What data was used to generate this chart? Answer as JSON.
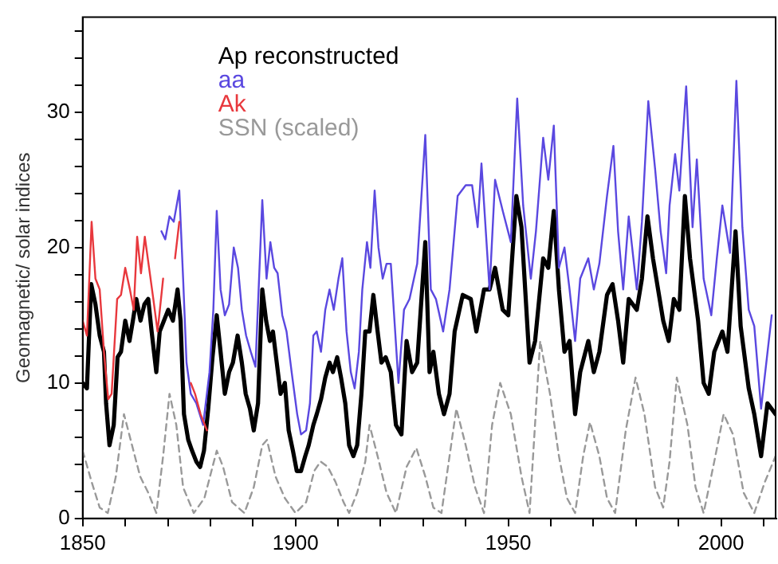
{
  "chart_data": {
    "type": "line",
    "ylabel": "Geomagnetic/ solar indices",
    "legend": "top left",
    "xlim": [
      1850,
      2013
    ],
    "ylim": [
      0,
      37
    ],
    "xticks": [
      1850,
      {
        "value": 1860,
        "label": null
      },
      {
        "value": 1870,
        "label": null
      },
      {
        "value": 1880,
        "label": null
      },
      {
        "value": 1890,
        "label": null
      },
      1900,
      {
        "value": 1910,
        "label": null
      },
      {
        "value": 1920,
        "label": null
      },
      {
        "value": 1930,
        "label": null
      },
      {
        "value": 1940,
        "label": null
      },
      1950,
      {
        "value": 1960,
        "label": null
      },
      {
        "value": 1970,
        "label": null
      },
      {
        "value": 1980,
        "label": null
      },
      {
        "value": 1990,
        "label": null
      },
      2000,
      {
        "value": 2010,
        "label": null
      }
    ],
    "yticks": [
      0,
      {
        "value": 2,
        "label": null
      },
      {
        "value": 4,
        "label": null
      },
      {
        "value": 6,
        "label": null
      },
      {
        "value": 8,
        "label": null
      },
      10,
      {
        "value": 12,
        "label": null
      },
      {
        "value": 14,
        "label": null
      },
      {
        "value": 16,
        "label": null
      },
      {
        "value": 18,
        "label": null
      },
      20,
      {
        "value": 22,
        "label": null
      },
      {
        "value": 24,
        "label": null
      },
      {
        "value": 26,
        "label": null
      },
      {
        "value": 28,
        "label": null
      },
      30,
      {
        "value": 32,
        "label": null
      },
      {
        "value": 34,
        "label": null
      },
      {
        "value": 36,
        "label": null
      }
    ],
    "series": [
      {
        "name": "Ap reconstructed",
        "color": "#000000",
        "line_style": "solid",
        "x": [
          1850,
          1851,
          1852,
          1853,
          1854,
          1855,
          1855.5,
          1856.3,
          1857.3,
          1858.2,
          1859,
          1860,
          1861,
          1861.8,
          1862.6,
          1863.6,
          1864.5,
          1865.4,
          1866.2,
          1867.3,
          1868.1,
          1869.1,
          1870.1,
          1871.2,
          1872.3,
          1873,
          1873.8,
          1874.8,
          1875.7,
          1876.7,
          1877.6,
          1878.5,
          1879.5,
          1880.5,
          1881.5,
          1882.4,
          1883.4,
          1884.4,
          1885.3,
          1886.4,
          1887.4,
          1888.3,
          1889.3,
          1890.2,
          1891.2,
          1892.2,
          1893.1,
          1894,
          1894.7,
          1895.6,
          1896.5,
          1897.5,
          1898.4,
          1899.4,
          1900.3,
          1901.3,
          1902.3,
          1903.1,
          1904.2,
          1905,
          1906,
          1907,
          1908,
          1908.8,
          1909.8,
          1910.7,
          1911.7,
          1912.6,
          1913.6,
          1914.5,
          1915.5,
          1916.4,
          1917.4,
          1918.3,
          1919.3,
          1920.2,
          1921.2,
          1922.4,
          1923.6,
          1924.9,
          1926.1,
          1927.4,
          1928.6,
          1930.5,
          1931.5,
          1932.4,
          1933.7,
          1934.9,
          1936.2,
          1937.4,
          1939.3,
          1941.2,
          1942.5,
          1944.3,
          1945.6,
          1946.9,
          1948.7,
          1950,
          1951.9,
          1953.1,
          1955,
          1956.3,
          1958.2,
          1959.4,
          1960.7,
          1961.9,
          1963.2,
          1964.4,
          1965.7,
          1966.9,
          1968.8,
          1970.1,
          1971.4,
          1973.2,
          1974.5,
          1975.8,
          1977,
          1978.3,
          1980.2,
          1981.4,
          1982.7,
          1984,
          1985.2,
          1986.4,
          1987.7,
          1988.9,
          1990.2,
          1991.5,
          1992.7,
          1994.6,
          1995.9,
          1997.1,
          1998.4,
          2000.3,
          2001.5,
          2003.4,
          2004.6,
          2006.5,
          2007.8,
          2009.4,
          2010.9,
          2012.8
        ],
        "values": [
          10,
          9.6,
          17.3,
          15.8,
          13.5,
          12.3,
          8.5,
          5.4,
          6.9,
          11.9,
          12.3,
          14.6,
          13.1,
          14.6,
          16.2,
          14.6,
          15.8,
          16.2,
          13.8,
          10.8,
          13.8,
          14.6,
          15.4,
          14.6,
          16.9,
          14.6,
          7.7,
          5.8,
          5,
          4.2,
          3.8,
          5,
          8.1,
          11.9,
          15,
          12.3,
          9.2,
          10.8,
          11.5,
          13.5,
          11.5,
          9.2,
          8.1,
          6.5,
          8.5,
          16.9,
          14.6,
          13.1,
          13.8,
          11.5,
          9.2,
          10,
          6.5,
          5,
          3.5,
          3.5,
          4.6,
          5.4,
          6.9,
          7.7,
          8.8,
          10.4,
          11.5,
          10.8,
          11.9,
          10.4,
          8.5,
          5.4,
          4.6,
          5.4,
          9.2,
          13.8,
          13.8,
          16.5,
          13.8,
          11.5,
          11.9,
          10.8,
          6.9,
          6.2,
          13.1,
          10.8,
          11.5,
          20.4,
          10.8,
          12.3,
          9.2,
          7.7,
          9.2,
          13.8,
          16.5,
          16.2,
          13.8,
          16.9,
          16.9,
          18.5,
          15.4,
          15,
          23.8,
          21.5,
          11.5,
          13.1,
          19.2,
          18.5,
          22.7,
          16.9,
          12.3,
          13.1,
          7.7,
          10.8,
          13.1,
          10.8,
          12.3,
          16.5,
          17.3,
          14.6,
          11.5,
          16.2,
          15.4,
          17.7,
          22.3,
          19.2,
          16.9,
          14.6,
          13.1,
          16.2,
          15.4,
          23.8,
          19.2,
          14.6,
          10,
          9.2,
          12.3,
          13.8,
          12.3,
          21.2,
          14.2,
          9.6,
          7.7,
          4.6,
          8.5,
          7.7
        ]
      },
      {
        "name": "aa",
        "color": "#5a48e0",
        "line_style": "solid",
        "x": [
          1868.5,
          1869.4,
          1870.4,
          1871.4,
          1872.7,
          1873.6,
          1874.4,
          1875.4,
          1876.7,
          1878.3,
          1879.8,
          1880.7,
          1881.5,
          1882.4,
          1883.4,
          1884.4,
          1885.5,
          1886.5,
          1887.4,
          1888.4,
          1889.5,
          1890.6,
          1892.2,
          1893.2,
          1894.1,
          1895,
          1895.8,
          1896.9,
          1897.9,
          1899.1,
          1900.4,
          1901.3,
          1902.5,
          1903.4,
          1904.2,
          1905,
          1906,
          1907,
          1908,
          1909,
          1910.1,
          1911,
          1912,
          1913,
          1913.9,
          1914.9,
          1915.7,
          1916.8,
          1917.6,
          1918.6,
          1919.5,
          1920.5,
          1921.4,
          1922.4,
          1924.2,
          1925.5,
          1926.8,
          1928.6,
          1930.5,
          1931.8,
          1933,
          1934.7,
          1936.2,
          1938.1,
          1940,
          1941.5,
          1942.8,
          1943.7,
          1945.6,
          1946.9,
          1948.7,
          1950.6,
          1952.1,
          1953.5,
          1955.3,
          1956.5,
          1958.2,
          1959.4,
          1960.7,
          1961.9,
          1963.2,
          1964.4,
          1965.7,
          1966.9,
          1968.8,
          1970.1,
          1971.4,
          1973.2,
          1974.7,
          1975.8,
          1977,
          1978.3,
          1980.2,
          1981.4,
          1982.9,
          1984.5,
          1985.8,
          1987.1,
          1987.9,
          1989.2,
          1990.2,
          1991.8,
          1993.3,
          1994.3,
          1995.9,
          1997.7,
          1999,
          2000.3,
          2002.1,
          2003.6,
          2005,
          2006.5,
          2007.8,
          2009.4,
          2011.9
        ],
        "values": [
          21.2,
          20.6,
          22.3,
          21.9,
          24.2,
          17.7,
          11.5,
          9.2,
          8.5,
          6.9,
          10.8,
          15.4,
          22.7,
          16.9,
          15,
          15.8,
          20,
          18.5,
          15.4,
          13.5,
          12.3,
          11.2,
          23.5,
          17.7,
          20.4,
          18.5,
          18.1,
          15,
          13.8,
          10.8,
          7.7,
          6.2,
          6.5,
          8.5,
          13.5,
          13.8,
          12.3,
          15.4,
          16.9,
          15.4,
          17.7,
          19.2,
          13.8,
          10.8,
          9.6,
          12.3,
          16.9,
          20.4,
          18.5,
          24.2,
          20,
          17.7,
          18.8,
          18.8,
          10,
          15.4,
          16.2,
          18.8,
          28.3,
          16.9,
          16.2,
          13.8,
          16.9,
          23.8,
          24.6,
          24.6,
          21.5,
          26.2,
          16.9,
          25,
          22.7,
          20.4,
          31,
          23.1,
          17.7,
          21.2,
          28.1,
          25,
          29,
          18.5,
          20,
          16.9,
          13.1,
          17.7,
          19.2,
          16.9,
          18.8,
          23.8,
          27.5,
          21.2,
          16.9,
          22.3,
          16.9,
          21.9,
          30.8,
          25.8,
          21.2,
          18.1,
          23.1,
          26.9,
          24.2,
          31.9,
          21.5,
          26.5,
          17.7,
          15,
          19.2,
          23.1,
          19.6,
          32.3,
          21.5,
          15.4,
          14.2,
          8.1,
          15
        ]
      },
      {
        "name": "Ak",
        "color": "#e8383d",
        "line_style": "solid",
        "x": [
          1850,
          1851,
          1852.1,
          1853,
          1854,
          1855,
          1856,
          1856.8,
          1858.1,
          1859,
          1860,
          1861.1,
          1862,
          1862.8,
          1863.7,
          1864.6,
          1865.6,
          1866.6,
          1867.6,
          1868.9,
          1870.3,
          1871.7,
          1872.7,
          1874,
          1875.4,
          1876.4,
          1877.7,
          1879.2
        ],
        "values": [
          14.6,
          13.5,
          21.9,
          17.7,
          16.9,
          12.3,
          8.8,
          9.2,
          16.2,
          16.5,
          18.5,
          16.9,
          15.4,
          20.8,
          18.1,
          20.8,
          18.5,
          16.2,
          13.8,
          17.7,
          null,
          19.2,
          21.9,
          null,
          10,
          9.2,
          7.7,
          6.5
        ]
      },
      {
        "name": "SSN (scaled)",
        "color": "#999999",
        "line_style": "dashed",
        "x": [
          1850,
          1852.1,
          1854,
          1855.9,
          1857.8,
          1859.7,
          1861.6,
          1863.5,
          1865.4,
          1867.3,
          1868.9,
          1870.4,
          1872,
          1873.6,
          1876.1,
          1878.6,
          1880.5,
          1881.5,
          1883,
          1885.1,
          1888,
          1890.2,
          1892.2,
          1893.3,
          1895.3,
          1897.5,
          1900,
          1902.5,
          1904.4,
          1905.9,
          1907.6,
          1909.4,
          1911.3,
          1912.6,
          1914.5,
          1916.4,
          1917.4,
          1919.3,
          1921.4,
          1923.6,
          1926.1,
          1928.4,
          1930.5,
          1932.4,
          1934.3,
          1936.2,
          1937.8,
          1940,
          1942.2,
          1944.3,
          1946.2,
          1948.1,
          1950.6,
          1953.1,
          1955,
          1957.5,
          1959.8,
          1961.9,
          1963.8,
          1965.7,
          1967.6,
          1969.2,
          1971.4,
          1973.2,
          1975.1,
          1977.6,
          1979.9,
          1982,
          1984.5,
          1986.4,
          1987.9,
          1989.6,
          1992.1,
          1994,
          1995.9,
          1998.4,
          2000.6,
          2002.8,
          2005.3,
          2007.8,
          2010.3,
          2012.8
        ],
        "values": [
          5,
          2.7,
          0.8,
          0.4,
          3.1,
          7.7,
          5.4,
          3.1,
          1.9,
          0.4,
          4.6,
          9.2,
          6.9,
          2.3,
          0.4,
          1.5,
          3.8,
          5,
          3.8,
          1.2,
          0.4,
          2.3,
          5.4,
          5.8,
          3.1,
          1.5,
          0.4,
          1.2,
          3.5,
          4.2,
          3.8,
          2.7,
          1.2,
          0.4,
          1.9,
          4.2,
          6.9,
          4.6,
          1.9,
          0.4,
          3.8,
          5.2,
          3.1,
          0.8,
          0.4,
          4.6,
          8.1,
          5.4,
          2.3,
          0.4,
          6.9,
          10,
          7.7,
          3.1,
          0.4,
          13.1,
          9.2,
          4.6,
          1.5,
          0.4,
          4.6,
          7.1,
          4.6,
          1.5,
          0.4,
          6.5,
          10.4,
          7.7,
          2.3,
          0.8,
          4.2,
          10.4,
          6.9,
          2.3,
          0.4,
          4.2,
          7.7,
          6.2,
          1.9,
          0.4,
          2.7,
          4.6
        ]
      }
    ]
  }
}
